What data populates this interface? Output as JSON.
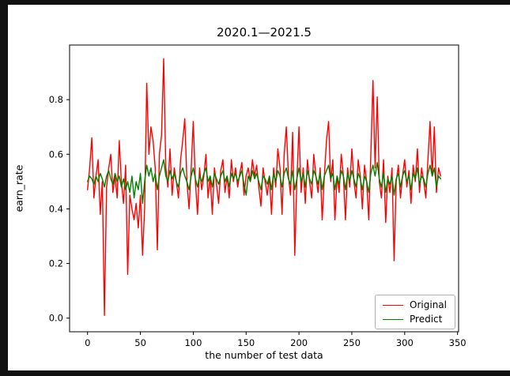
{
  "window": {
    "background_color": "#111111",
    "figure_background": "#ffffff"
  },
  "chart_data": {
    "type": "line",
    "title": "2020.1—2021.5",
    "xlabel": "the number of test data",
    "ylabel": "earn_rate",
    "grid": false,
    "xlim": [
      -17,
      351
    ],
    "ylim": [
      -0.05,
      1.0
    ],
    "xticks": [
      0,
      50,
      100,
      150,
      200,
      250,
      300,
      350
    ],
    "yticks": [
      0.0,
      0.2,
      0.4,
      0.6,
      0.8
    ],
    "ytick_labels": [
      "0.0",
      "0.2",
      "0.4",
      "0.6",
      "0.8"
    ],
    "x_start": 0,
    "x_step": 2,
    "n_points": 168,
    "legend": {
      "position": "lower right",
      "entries": [
        {
          "label": "Original",
          "color": "#ff0000"
        },
        {
          "label": "Predict",
          "color": "#008000"
        }
      ]
    },
    "series": [
      {
        "name": "Original",
        "color": "#ff0000",
        "values": [
          0.47,
          0.55,
          0.66,
          0.44,
          0.52,
          0.58,
          0.38,
          0.5,
          0.01,
          0.48,
          0.55,
          0.6,
          0.46,
          0.52,
          0.44,
          0.65,
          0.5,
          0.42,
          0.56,
          0.16,
          0.45,
          0.4,
          0.36,
          0.42,
          0.33,
          0.45,
          0.23,
          0.4,
          0.86,
          0.6,
          0.7,
          0.65,
          0.55,
          0.25,
          0.6,
          0.67,
          0.95,
          0.55,
          0.48,
          0.62,
          0.45,
          0.55,
          0.5,
          0.44,
          0.58,
          0.65,
          0.73,
          0.5,
          0.4,
          0.55,
          0.72,
          0.5,
          0.38,
          0.55,
          0.47,
          0.52,
          0.6,
          0.44,
          0.52,
          0.38,
          0.55,
          0.49,
          0.42,
          0.54,
          0.58,
          0.46,
          0.52,
          0.44,
          0.58,
          0.5,
          0.55,
          0.48,
          0.53,
          0.57,
          0.45,
          0.52,
          0.55,
          0.5,
          0.58,
          0.52,
          0.56,
          0.48,
          0.41,
          0.55,
          0.5,
          0.45,
          0.52,
          0.38,
          0.55,
          0.48,
          0.62,
          0.55,
          0.38,
          0.6,
          0.7,
          0.52,
          0.45,
          0.68,
          0.23,
          0.5,
          0.7,
          0.46,
          0.55,
          0.42,
          0.58,
          0.5,
          0.44,
          0.6,
          0.52,
          0.46,
          0.55,
          0.36,
          0.52,
          0.65,
          0.72,
          0.5,
          0.58,
          0.36,
          0.52,
          0.46,
          0.6,
          0.52,
          0.36,
          0.55,
          0.48,
          0.62,
          0.5,
          0.44,
          0.58,
          0.52,
          0.4,
          0.56,
          0.5,
          0.36,
          0.6,
          0.87,
          0.55,
          0.81,
          0.5,
          0.44,
          0.58,
          0.35,
          0.52,
          0.46,
          0.55,
          0.21,
          0.5,
          0.56,
          0.44,
          0.52,
          0.58,
          0.48,
          0.54,
          0.42,
          0.56,
          0.5,
          0.62,
          0.46,
          0.55,
          0.5,
          0.44,
          0.58,
          0.72,
          0.52,
          0.7,
          0.46,
          0.55,
          0.52
        ]
      },
      {
        "name": "Predict",
        "color": "#008000",
        "values": [
          0.5,
          0.52,
          0.51,
          0.49,
          0.52,
          0.5,
          0.53,
          0.51,
          0.48,
          0.52,
          0.54,
          0.51,
          0.49,
          0.53,
          0.5,
          0.52,
          0.48,
          0.51,
          0.47,
          0.5,
          0.46,
          0.52,
          0.44,
          0.5,
          0.47,
          0.53,
          0.42,
          0.5,
          0.56,
          0.52,
          0.55,
          0.5,
          0.53,
          0.47,
          0.52,
          0.55,
          0.58,
          0.52,
          0.5,
          0.54,
          0.51,
          0.53,
          0.5,
          0.48,
          0.53,
          0.55,
          0.52,
          0.5,
          0.47,
          0.52,
          0.55,
          0.51,
          0.48,
          0.52,
          0.5,
          0.53,
          0.55,
          0.5,
          0.52,
          0.48,
          0.53,
          0.51,
          0.49,
          0.52,
          0.54,
          0.5,
          0.52,
          0.48,
          0.53,
          0.51,
          0.53,
          0.5,
          0.52,
          0.54,
          0.49,
          0.45,
          0.52,
          0.5,
          0.54,
          0.51,
          0.53,
          0.5,
          0.47,
          0.52,
          0.51,
          0.49,
          0.52,
          0.47,
          0.53,
          0.5,
          0.54,
          0.52,
          0.48,
          0.53,
          0.55,
          0.51,
          0.49,
          0.54,
          0.47,
          0.51,
          0.55,
          0.5,
          0.53,
          0.48,
          0.54,
          0.51,
          0.49,
          0.54,
          0.52,
          0.49,
          0.53,
          0.47,
          0.52,
          0.54,
          0.56,
          0.51,
          0.53,
          0.47,
          0.52,
          0.49,
          0.54,
          0.52,
          0.47,
          0.53,
          0.5,
          0.54,
          0.51,
          0.48,
          0.53,
          0.51,
          0.47,
          0.52,
          0.5,
          0.46,
          0.53,
          0.56,
          0.52,
          0.57,
          0.51,
          0.48,
          0.53,
          0.46,
          0.51,
          0.49,
          0.52,
          0.45,
          0.51,
          0.53,
          0.48,
          0.52,
          0.54,
          0.5,
          0.52,
          0.47,
          0.53,
          0.51,
          0.55,
          0.49,
          0.52,
          0.51,
          0.48,
          0.53,
          0.56,
          0.52,
          0.55,
          0.48,
          0.52,
          0.51
        ]
      }
    ]
  }
}
